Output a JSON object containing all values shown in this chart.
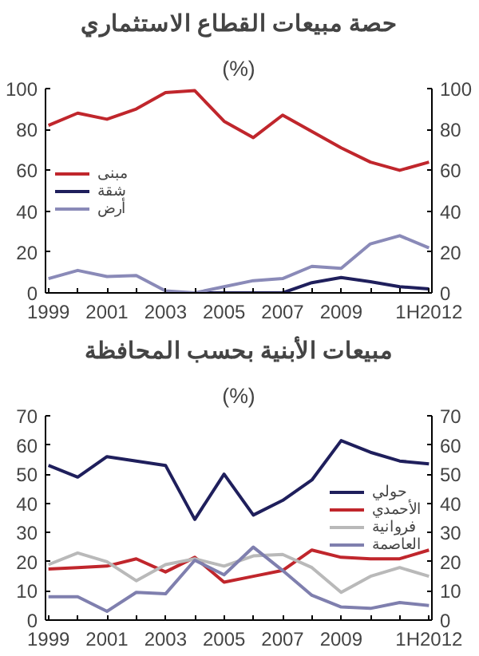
{
  "chart_data": [
    {
      "type": "line",
      "title": "حصة مبيعات القطاع الاستثماري",
      "subtitle": "(%)",
      "categories": [
        "1999",
        null,
        "2001",
        null,
        "2003",
        null,
        "2005",
        null,
        "2007",
        null,
        "2009",
        null,
        null,
        "1H2012"
      ],
      "series": [
        {
          "name": "مبنى",
          "color": "#c0262c",
          "values": [
            82,
            88,
            85,
            90,
            98,
            99,
            84,
            76,
            87,
            79,
            71,
            64,
            60,
            64
          ]
        },
        {
          "name": "شقة",
          "color": "#1f1f5c",
          "values": [
            null,
            null,
            null,
            null,
            0,
            0,
            0,
            0,
            0,
            5,
            7.5,
            5.5,
            3,
            2
          ]
        },
        {
          "name": "أرض",
          "color": "#8a8ab8",
          "values": [
            7,
            11,
            8,
            8.5,
            1,
            0,
            3,
            6,
            7,
            13,
            12,
            24,
            28,
            22
          ]
        }
      ],
      "ylim": [
        0,
        100
      ],
      "yticks": [
        0,
        20,
        40,
        60,
        80,
        100
      ],
      "y2lim": [
        0,
        100
      ],
      "y2ticks": [
        0,
        20,
        40,
        60,
        80,
        100
      ],
      "legend": "left"
    },
    {
      "type": "line",
      "title": "مبيعات الأبنية بحسب المحافظة",
      "subtitle": "(%)",
      "categories": [
        "1999",
        null,
        "2001",
        null,
        "2003",
        null,
        "2005",
        null,
        "2007",
        null,
        "2009",
        null,
        null,
        "1H2012"
      ],
      "series": [
        {
          "name": "حولي",
          "color": "#1f1f5c",
          "values": [
            53,
            49,
            56,
            54.5,
            53,
            34.5,
            50,
            36,
            41,
            48,
            61.5,
            57.5,
            54.5,
            53.5
          ]
        },
        {
          "name": "الأحمدي",
          "color": "#c0262c",
          "values": [
            17.5,
            18,
            18.5,
            21,
            16.5,
            21.5,
            13,
            15,
            17,
            24,
            21.5,
            21,
            21,
            24
          ]
        },
        {
          "name": "فروانية",
          "color": "#b9b9b9",
          "values": [
            19,
            23,
            20,
            13.5,
            19,
            21,
            18.5,
            22,
            22.5,
            18,
            9.5,
            15,
            18,
            15
          ]
        },
        {
          "name": "العاصمة",
          "color": "#7f7fae",
          "values": [
            8,
            8,
            3,
            9.5,
            9,
            20.5,
            15.5,
            25,
            17,
            8.5,
            4.5,
            4,
            6,
            5
          ]
        }
      ],
      "ylim": [
        0,
        70
      ],
      "yticks": [
        0,
        10,
        20,
        30,
        40,
        50,
        60,
        70
      ],
      "y2lim": [
        0,
        70
      ],
      "y2ticks": [
        0,
        10,
        20,
        30,
        40,
        50,
        60,
        70
      ],
      "legend": "right"
    }
  ]
}
